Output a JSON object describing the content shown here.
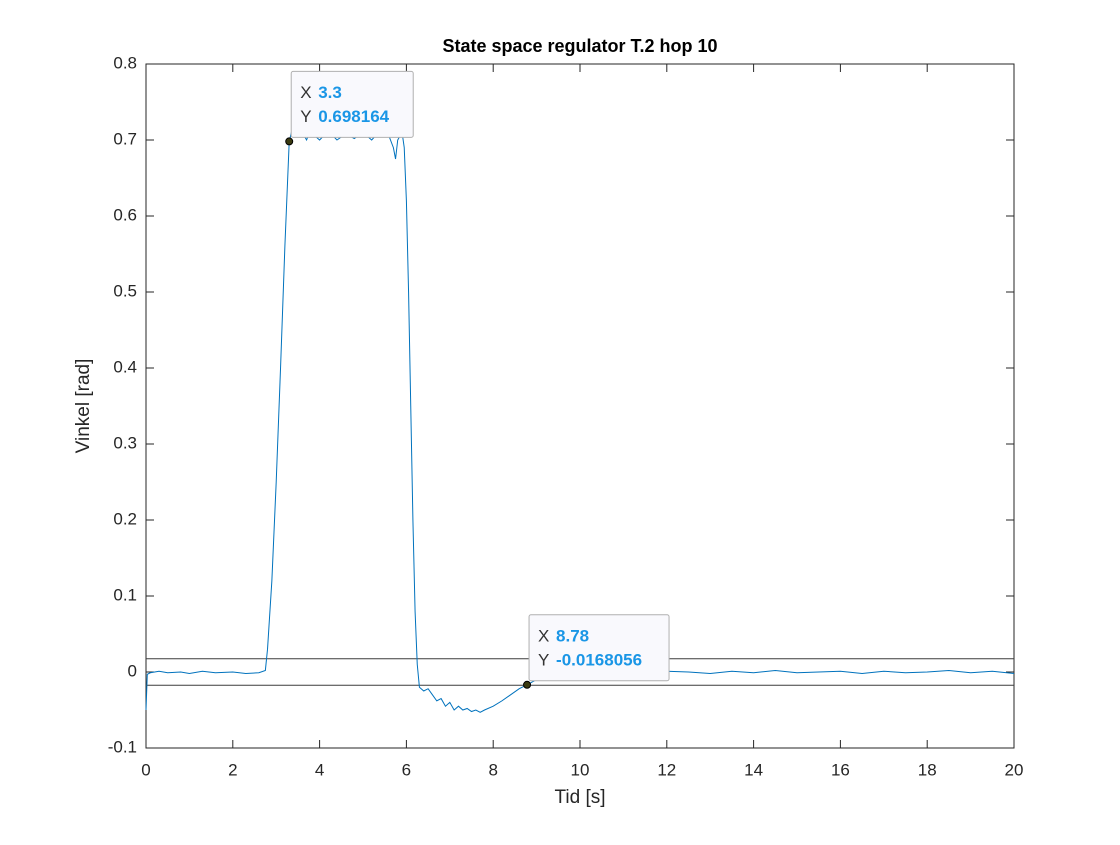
{
  "chart_data": {
    "type": "line",
    "title": "State space regulator T.2 hop 10",
    "xlabel": "Tid [s]",
    "ylabel": "Vinkel [rad]",
    "x": [
      0,
      0.03,
      0.1,
      0.3,
      0.5,
      0.8,
      1.0,
      1.3,
      1.6,
      2.0,
      2.3,
      2.6,
      2.75,
      2.8,
      2.9,
      3.0,
      3.1,
      3.2,
      3.3,
      3.35,
      3.4,
      3.5,
      3.6,
      3.7,
      3.8,
      3.9,
      4.0,
      4.2,
      4.4,
      4.6,
      4.8,
      5.0,
      5.2,
      5.4,
      5.6,
      5.7,
      5.75,
      5.8,
      5.9,
      5.95,
      6.0,
      6.05,
      6.1,
      6.15,
      6.2,
      6.25,
      6.3,
      6.4,
      6.5,
      6.6,
      6.7,
      6.8,
      6.9,
      7.0,
      7.1,
      7.2,
      7.3,
      7.4,
      7.5,
      7.6,
      7.7,
      7.8,
      8.0,
      8.2,
      8.4,
      8.6,
      8.78,
      9.0,
      9.2,
      9.5,
      10,
      10.5,
      11,
      11.5,
      12,
      12.5,
      13,
      13.5,
      14,
      14.5,
      15,
      15.5,
      16,
      16.5,
      17,
      17.5,
      18,
      18.5,
      19,
      19.5,
      20
    ],
    "series": [
      {
        "name": "Vinkel",
        "color": "#0072bd",
        "values": [
          -0.05,
          -0.003,
          -0.001,
          0.001,
          -0.001,
          0,
          -0.002,
          0.001,
          -0.001,
          0,
          -0.002,
          -0.001,
          0.002,
          0.03,
          0.12,
          0.25,
          0.4,
          0.56,
          0.698164,
          0.71,
          0.72,
          0.705,
          0.71,
          0.7,
          0.715,
          0.705,
          0.7,
          0.712,
          0.7,
          0.708,
          0.702,
          0.71,
          0.7,
          0.713,
          0.705,
          0.69,
          0.675,
          0.7,
          0.71,
          0.69,
          0.62,
          0.5,
          0.35,
          0.2,
          0.08,
          0.01,
          -0.02,
          -0.025,
          -0.022,
          -0.03,
          -0.038,
          -0.035,
          -0.045,
          -0.04,
          -0.05,
          -0.045,
          -0.05,
          -0.048,
          -0.052,
          -0.05,
          -0.053,
          -0.05,
          -0.045,
          -0.038,
          -0.03,
          -0.022,
          -0.0168056,
          -0.01,
          -0.006,
          -0.003,
          0.001,
          -0.001,
          0.002,
          -0.002,
          0.001,
          0,
          -0.002,
          0.001,
          -0.001,
          0.002,
          -0.001,
          0,
          0.001,
          -0.002,
          0.001,
          -0.001,
          0,
          0.002,
          -0.001,
          0.001,
          -0.002
        ]
      }
    ],
    "hlines": [
      0.0175,
      -0.0175
    ],
    "hline_color": "#3d3d3d",
    "datatip_keys": [
      "X",
      "Y"
    ],
    "datatips": [
      {
        "x": 3.3,
        "y": 0.698164
      },
      {
        "x": 8.78,
        "y": -0.0168056
      }
    ],
    "xlim": [
      0,
      20
    ],
    "ylim": [
      -0.1,
      0.8
    ],
    "xticks": [
      0,
      2,
      4,
      6,
      8,
      10,
      12,
      14,
      16,
      18,
      20
    ],
    "yticks": [
      -0.1,
      0,
      0.1,
      0.2,
      0.3,
      0.4,
      0.5,
      0.6,
      0.7,
      0.8
    ]
  }
}
